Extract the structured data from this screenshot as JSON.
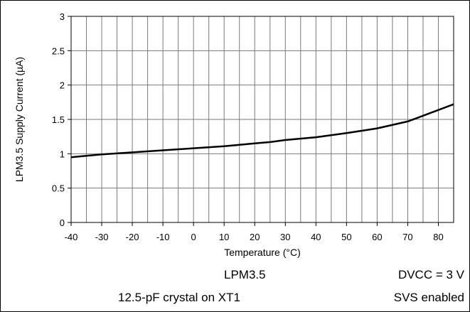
{
  "chart_data": {
    "type": "line",
    "xlabel": "Temperature (°C)",
    "ylabel": "LPM3.5 Supply Current (µA)",
    "xlim": [
      -40,
      85
    ],
    "ylim": [
      0,
      3
    ],
    "x_ticks": [
      "-40",
      "-30",
      "-20",
      "-10",
      "0",
      "10",
      "20",
      "30",
      "40",
      "50",
      "60",
      "70",
      "80"
    ],
    "y_ticks": [
      "0",
      "0.5",
      "1",
      "1.5",
      "2",
      "2.5",
      "3"
    ],
    "grid": true,
    "series": [
      {
        "x": [
          -40,
          -30,
          -20,
          -10,
          0,
          10,
          20,
          25,
          30,
          40,
          50,
          60,
          70,
          85
        ],
        "y": [
          0.95,
          0.99,
          1.02,
          1.05,
          1.08,
          1.11,
          1.15,
          1.17,
          1.2,
          1.24,
          1.3,
          1.37,
          1.47,
          1.72
        ]
      }
    ]
  },
  "notes": {
    "mode": "LPM3.5",
    "crystal": "12.5-pF crystal on XT1",
    "dvcc": "DVCC = 3 V",
    "svs": "SVS enabled"
  }
}
